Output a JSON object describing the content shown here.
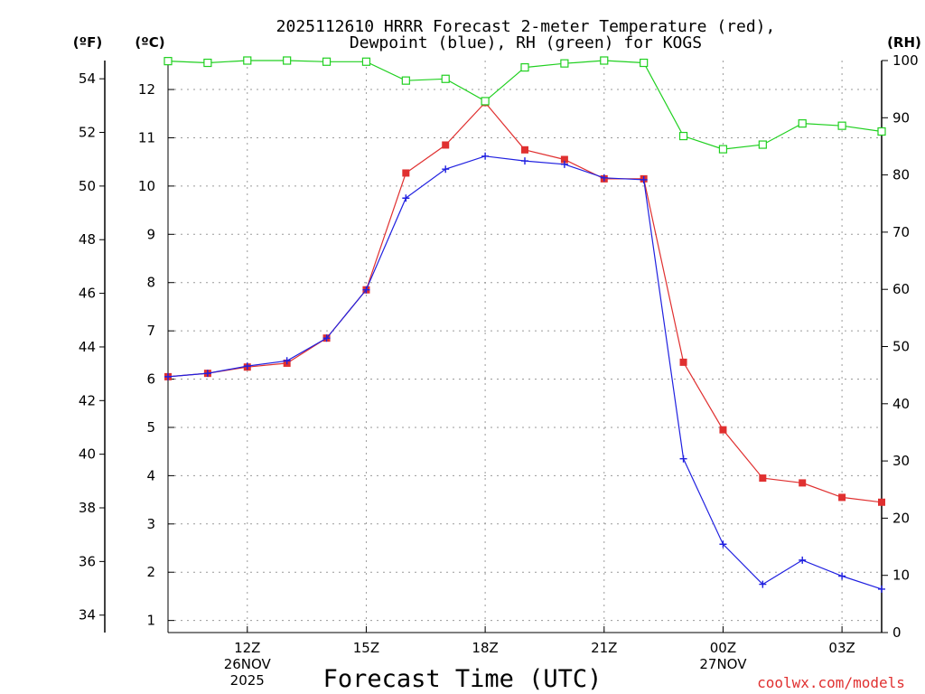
{
  "chart_data": {
    "type": "line",
    "title_line1": "2025112610 HRRR Forecast 2-meter Temperature (red),",
    "title_line2": "Dewpoint (blue), RH (green) for KOGS",
    "unit_f": "(ºF)",
    "unit_c": "(ºC)",
    "unit_rh": "(RH)",
    "xlabel": "Forecast Time (UTC)",
    "credit": "coolwx.com/models",
    "x_hours": [
      10,
      11,
      12,
      13,
      14,
      15,
      16,
      17,
      18,
      19,
      20,
      21,
      22,
      23,
      24,
      25,
      26,
      27,
      28
    ],
    "x_ticks": [
      {
        "hour": 12,
        "label": "12Z",
        "date": "26NOV",
        "year": "2025"
      },
      {
        "hour": 15,
        "label": "15Z",
        "date": "",
        "year": ""
      },
      {
        "hour": 18,
        "label": "18Z",
        "date": "",
        "year": ""
      },
      {
        "hour": 21,
        "label": "21Z",
        "date": "",
        "year": ""
      },
      {
        "hour": 24,
        "label": "00Z",
        "date": "27NOV",
        "year": ""
      },
      {
        "hour": 27,
        "label": "03Z",
        "date": "",
        "year": ""
      }
    ],
    "xlim": [
      10,
      28
    ],
    "ylim_c": [
      0.75,
      12.6
    ],
    "ylim_rh": [
      0,
      100
    ],
    "yticks_c": [
      1,
      2,
      3,
      4,
      5,
      6,
      7,
      8,
      9,
      10,
      11,
      12
    ],
    "yticks_f": [
      34,
      36,
      38,
      40,
      42,
      44,
      46,
      48,
      50,
      52,
      54
    ],
    "yticks_rh": [
      0,
      10,
      20,
      30,
      40,
      50,
      60,
      70,
      80,
      90,
      100
    ],
    "series": [
      {
        "name": "Temperature",
        "axis": "C",
        "color": "#e03030",
        "marker": "square",
        "values": [
          6.05,
          6.12,
          6.25,
          6.33,
          6.85,
          7.85,
          10.27,
          10.85,
          11.73,
          10.75,
          10.55,
          10.15,
          10.15,
          6.35,
          4.95,
          3.95,
          3.85,
          3.55,
          3.45
        ]
      },
      {
        "name": "Dewpoint",
        "axis": "C",
        "color": "#2020e0",
        "marker": "plus",
        "values": [
          6.05,
          6.12,
          6.27,
          6.38,
          6.85,
          7.85,
          9.75,
          10.35,
          10.62,
          10.52,
          10.45,
          10.17,
          10.13,
          4.35,
          2.58,
          1.75,
          2.25,
          1.92,
          1.65
        ]
      },
      {
        "name": "RH",
        "axis": "RH",
        "color": "#20d020",
        "marker": "open-square",
        "values": [
          99.9,
          99.6,
          100,
          100,
          99.8,
          99.8,
          96.5,
          96.8,
          92.9,
          98.8,
          99.5,
          100,
          99.6,
          86.8,
          84.5,
          85.3,
          89.0,
          88.6,
          87.6
        ]
      }
    ]
  }
}
